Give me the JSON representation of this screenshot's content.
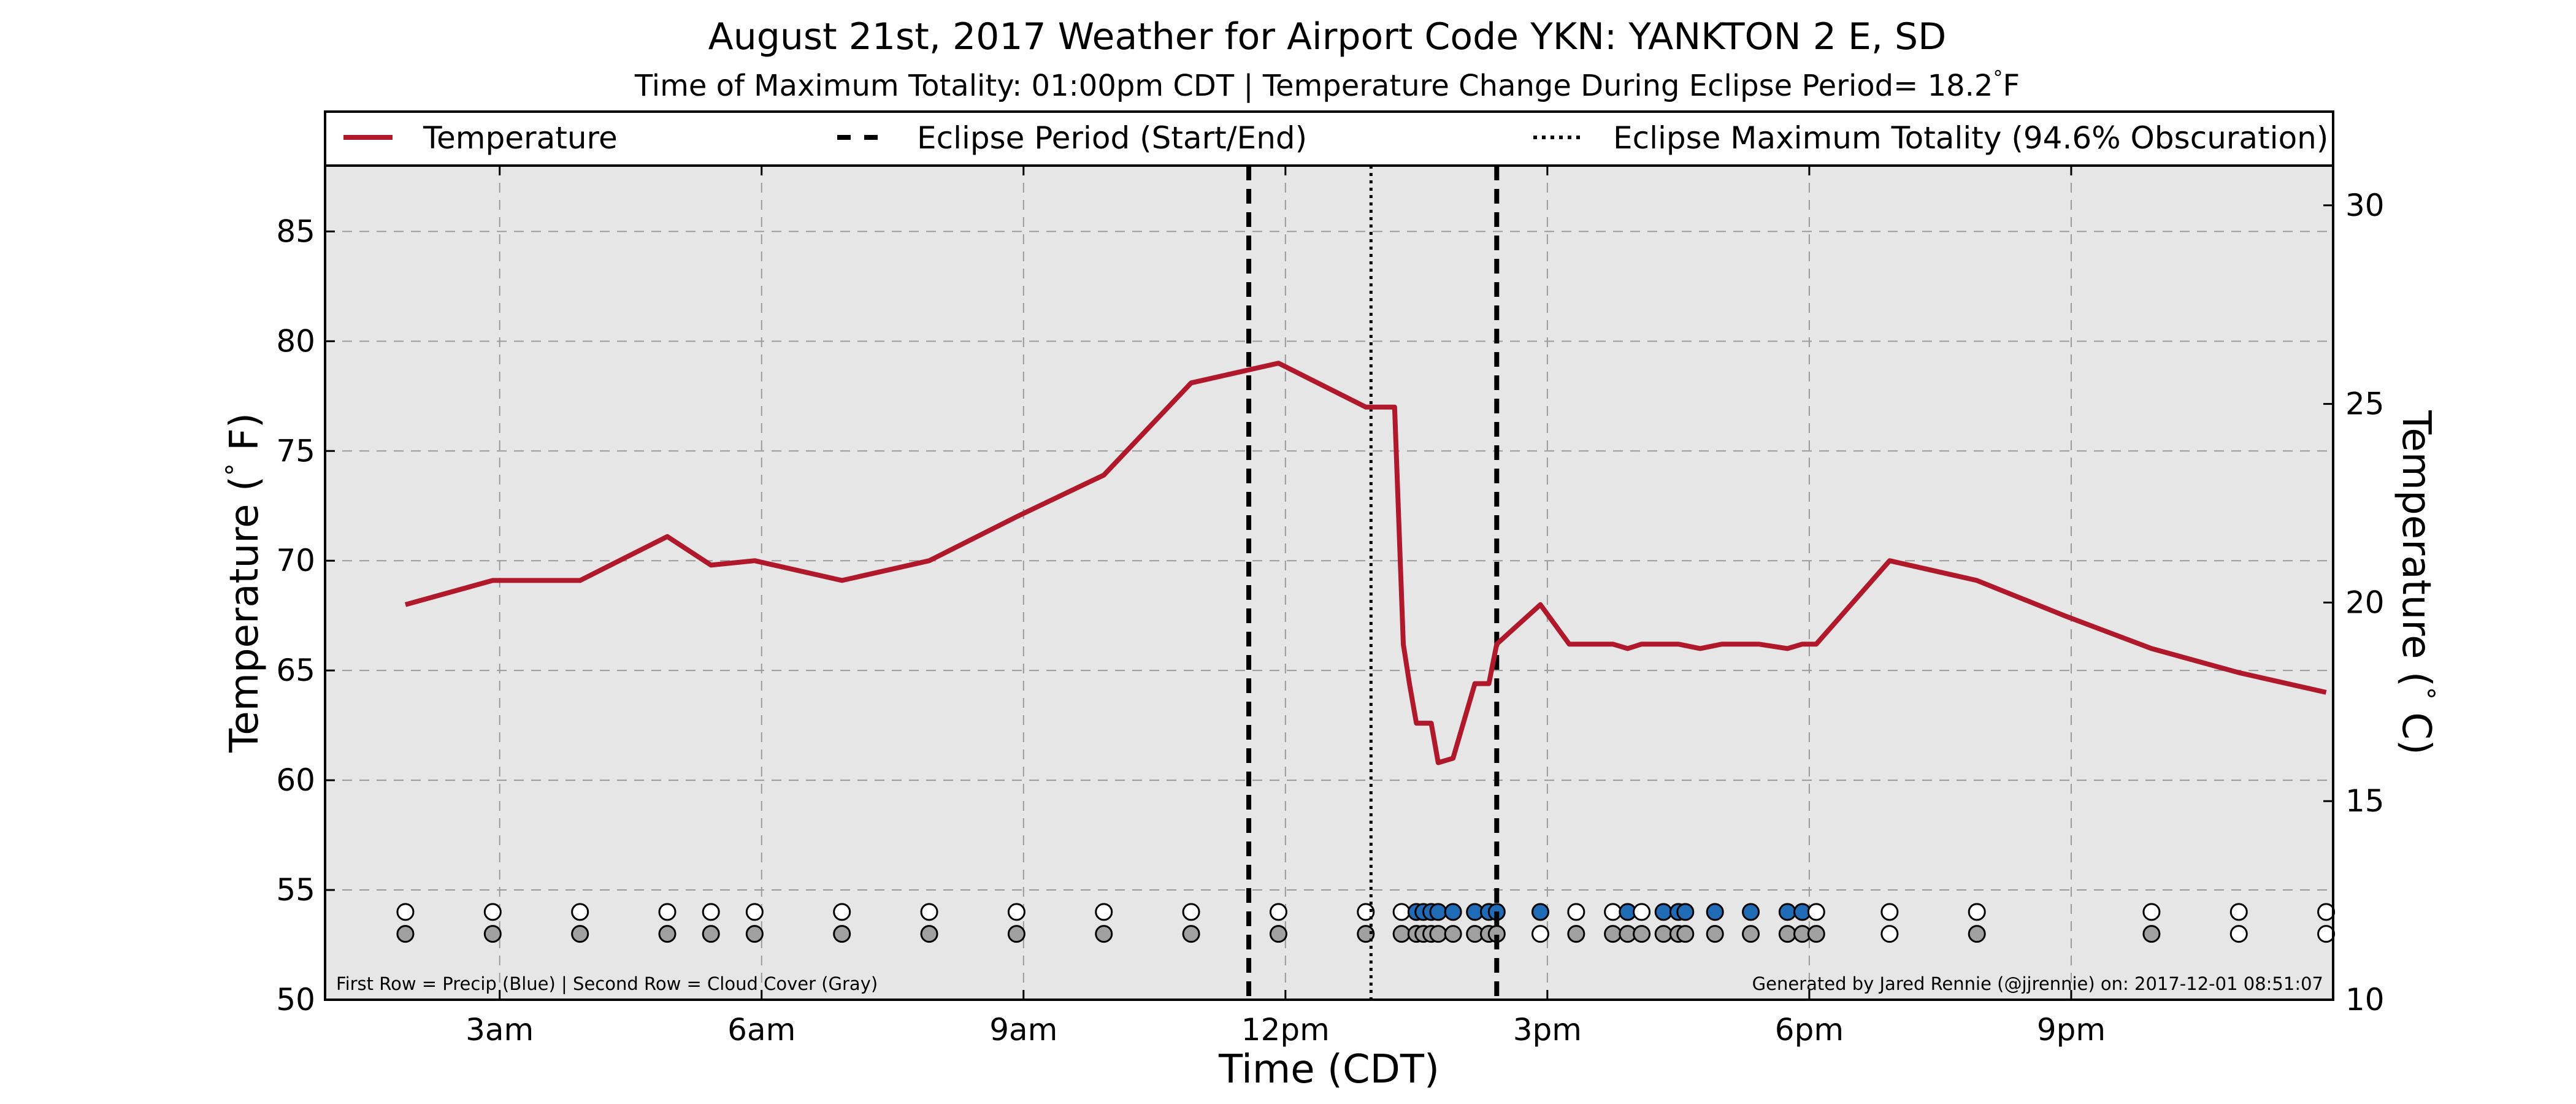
{
  "chart_data": {
    "type": "line",
    "title": "August 21st, 2017 Weather for Airport Code YKN: YANKTON 2 E, SD",
    "subtitle_parts": [
      "Time of Maximum Totality: 01:00pm CDT | Temperature Change During Eclipse Period= 18.2",
      "°",
      "F"
    ],
    "xlabel": "Time (CDT)",
    "ylabel_parts": [
      "Temperature (",
      "°",
      " F)"
    ],
    "y2label_parts": [
      "Temperature (",
      "°",
      " C)"
    ],
    "x_unit": "hours since midnight CDT",
    "xlim": [
      1.0,
      24.0
    ],
    "ylim": [
      50,
      88
    ],
    "y2lim": [
      10,
      31
    ],
    "x_ticks": [
      {
        "value": 3,
        "label": "3am"
      },
      {
        "value": 6,
        "label": "6am"
      },
      {
        "value": 9,
        "label": "9am"
      },
      {
        "value": 12,
        "label": "12pm"
      },
      {
        "value": 15,
        "label": "3pm"
      },
      {
        "value": 18,
        "label": "6pm"
      },
      {
        "value": 21,
        "label": "9pm"
      }
    ],
    "y_ticks": [
      50,
      55,
      60,
      65,
      70,
      75,
      80,
      85
    ],
    "y2_ticks": [
      10,
      15,
      20,
      25,
      30
    ],
    "grid": true,
    "legend": {
      "position": "top",
      "entries": [
        {
          "label": "Temperature",
          "style": "solid"
        },
        {
          "label": "Eclipse Period (Start/End)",
          "style": "dashed"
        },
        {
          "label": "Eclipse Maximum Totality (94.6% Obscuration)",
          "style": "dotted"
        }
      ]
    },
    "series": [
      {
        "name": "Temperature",
        "color": "#b0182b",
        "x": [
          1.92,
          2.92,
          3.92,
          4.92,
          5.42,
          5.92,
          6.92,
          7.92,
          8.92,
          9.92,
          10.92,
          11.92,
          12.92,
          13.25,
          13.35,
          13.42,
          13.5,
          13.67,
          13.75,
          13.92,
          14.17,
          14.33,
          14.42,
          14.92,
          15.25,
          15.75,
          15.92,
          16.08,
          16.5,
          16.75,
          17.0,
          17.42,
          17.75,
          17.92,
          18.08,
          18.92,
          19.92,
          20.92,
          21.92,
          22.92,
          23.92
        ],
        "values": [
          68.0,
          69.1,
          69.1,
          71.1,
          69.8,
          70.0,
          69.1,
          70.0,
          72.0,
          73.9,
          78.1,
          79.0,
          77.0,
          77.0,
          66.2,
          64.4,
          62.6,
          62.6,
          60.8,
          61.0,
          64.4,
          64.4,
          66.2,
          68.0,
          66.2,
          66.2,
          66.0,
          66.2,
          66.2,
          66.0,
          66.2,
          66.2,
          66.0,
          66.2,
          66.2,
          70.0,
          69.1,
          67.5,
          66.0,
          64.9,
          64.0
        ]
      }
    ],
    "eclipse_period": {
      "start": 11.58,
      "end": 14.42
    },
    "maximum_totality": 12.98,
    "indicator_rows": {
      "precip_y": 54.0,
      "cloud_y": 53.0,
      "precip_color": "#1f6bb5",
      "cloud_color": "#a0a0a0",
      "precip": [
        {
          "x": 1.92,
          "v": 0
        },
        {
          "x": 2.92,
          "v": 0
        },
        {
          "x": 3.92,
          "v": 0
        },
        {
          "x": 4.92,
          "v": 0
        },
        {
          "x": 5.42,
          "v": 0
        },
        {
          "x": 5.92,
          "v": 0
        },
        {
          "x": 6.92,
          "v": 0
        },
        {
          "x": 7.92,
          "v": 0
        },
        {
          "x": 8.92,
          "v": 0
        },
        {
          "x": 9.92,
          "v": 0
        },
        {
          "x": 10.92,
          "v": 0
        },
        {
          "x": 11.92,
          "v": 0
        },
        {
          "x": 12.92,
          "v": 0
        },
        {
          "x": 13.33,
          "v": 0
        },
        {
          "x": 13.5,
          "v": 1
        },
        {
          "x": 13.58,
          "v": 1
        },
        {
          "x": 13.67,
          "v": 1
        },
        {
          "x": 13.75,
          "v": 1
        },
        {
          "x": 13.92,
          "v": 1
        },
        {
          "x": 14.17,
          "v": 1
        },
        {
          "x": 14.33,
          "v": 1
        },
        {
          "x": 14.42,
          "v": 1
        },
        {
          "x": 14.92,
          "v": 1
        },
        {
          "x": 15.33,
          "v": 0
        },
        {
          "x": 15.75,
          "v": 0
        },
        {
          "x": 15.92,
          "v": 1
        },
        {
          "x": 16.08,
          "v": 0
        },
        {
          "x": 16.33,
          "v": 1
        },
        {
          "x": 16.5,
          "v": 1
        },
        {
          "x": 16.58,
          "v": 1
        },
        {
          "x": 16.92,
          "v": 1
        },
        {
          "x": 17.33,
          "v": 1
        },
        {
          "x": 17.75,
          "v": 1
        },
        {
          "x": 17.92,
          "v": 1
        },
        {
          "x": 18.08,
          "v": 0
        },
        {
          "x": 18.92,
          "v": 0
        },
        {
          "x": 19.92,
          "v": 0
        },
        {
          "x": 21.92,
          "v": 0
        },
        {
          "x": 22.92,
          "v": 0
        },
        {
          "x": 23.92,
          "v": 0
        }
      ],
      "cloud": [
        {
          "x": 1.92,
          "v": 1
        },
        {
          "x": 2.92,
          "v": 1
        },
        {
          "x": 3.92,
          "v": 1
        },
        {
          "x": 4.92,
          "v": 1
        },
        {
          "x": 5.42,
          "v": 1
        },
        {
          "x": 5.92,
          "v": 1
        },
        {
          "x": 6.92,
          "v": 1
        },
        {
          "x": 7.92,
          "v": 1
        },
        {
          "x": 8.92,
          "v": 1
        },
        {
          "x": 9.92,
          "v": 1
        },
        {
          "x": 10.92,
          "v": 1
        },
        {
          "x": 11.92,
          "v": 1
        },
        {
          "x": 12.92,
          "v": 1
        },
        {
          "x": 13.33,
          "v": 1
        },
        {
          "x": 13.5,
          "v": 1
        },
        {
          "x": 13.58,
          "v": 1
        },
        {
          "x": 13.67,
          "v": 1
        },
        {
          "x": 13.75,
          "v": 1
        },
        {
          "x": 13.92,
          "v": 1
        },
        {
          "x": 14.17,
          "v": 1
        },
        {
          "x": 14.33,
          "v": 1
        },
        {
          "x": 14.42,
          "v": 1
        },
        {
          "x": 14.92,
          "v": 0
        },
        {
          "x": 15.33,
          "v": 1
        },
        {
          "x": 15.75,
          "v": 1
        },
        {
          "x": 15.92,
          "v": 1
        },
        {
          "x": 16.08,
          "v": 1
        },
        {
          "x": 16.33,
          "v": 1
        },
        {
          "x": 16.5,
          "v": 1
        },
        {
          "x": 16.58,
          "v": 1
        },
        {
          "x": 16.92,
          "v": 1
        },
        {
          "x": 17.33,
          "v": 1
        },
        {
          "x": 17.75,
          "v": 1
        },
        {
          "x": 17.92,
          "v": 1
        },
        {
          "x": 18.08,
          "v": 1
        },
        {
          "x": 18.92,
          "v": 0
        },
        {
          "x": 19.92,
          "v": 1
        },
        {
          "x": 21.92,
          "v": 1
        },
        {
          "x": 22.92,
          "v": 0
        },
        {
          "x": 23.92,
          "v": 0
        }
      ]
    },
    "notes": {
      "rows_note": "First Row = Precip (Blue) | Second Row = Cloud Cover (Gray)",
      "credit": "Generated by Jared Rennie (@jjrennie) on: 2017-12-01 08:51:07"
    }
  }
}
